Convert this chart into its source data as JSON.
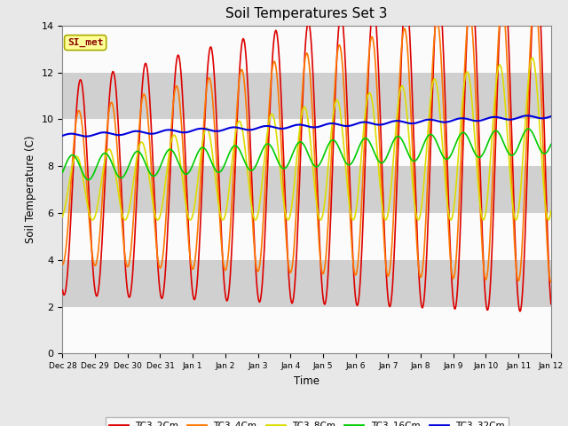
{
  "title": "Soil Temperatures Set 3",
  "xlabel": "Time",
  "ylabel": "Soil Temperature (C)",
  "ylim": [
    0,
    14
  ],
  "yticks": [
    0,
    2,
    4,
    6,
    8,
    10,
    12,
    14
  ],
  "tick_labels": [
    "Dec 28",
    "Dec 29",
    "Dec 30",
    "Dec 31",
    "Jan 1",
    "Jan 2",
    "Jan 3",
    "Jan 4",
    "Jan 5",
    "Jan 6",
    "Jan 7",
    "Jan 8",
    "Jan 9",
    "Jan 10",
    "Jan 11",
    "Jan 12"
  ],
  "legend_entries": [
    "TC3_2Cm",
    "TC3_4Cm",
    "TC3_8Cm",
    "TC3_16Cm",
    "TC3_32Cm"
  ],
  "line_colors": [
    "#dd0000",
    "#ff7700",
    "#dddd00",
    "#00cc00",
    "#0000dd"
  ],
  "line_widths": [
    1.2,
    1.2,
    1.2,
    1.2,
    1.5
  ],
  "annotation_text": "SI_met",
  "annotation_bg": "#ffff99",
  "annotation_border": "#aaaa00",
  "annotation_text_color": "#880000",
  "plot_bg": "#e8e8e8",
  "fig_bg": "#e8e8e8",
  "band_pairs": [
    [
      12,
      14,
      "#ffffff"
    ],
    [
      10,
      12,
      "#cccccc"
    ],
    [
      8,
      10,
      "#ffffff"
    ],
    [
      6,
      8,
      "#cccccc"
    ],
    [
      4,
      6,
      "#ffffff"
    ],
    [
      2,
      4,
      "#cccccc"
    ],
    [
      0,
      2,
      "#ffffff"
    ]
  ]
}
